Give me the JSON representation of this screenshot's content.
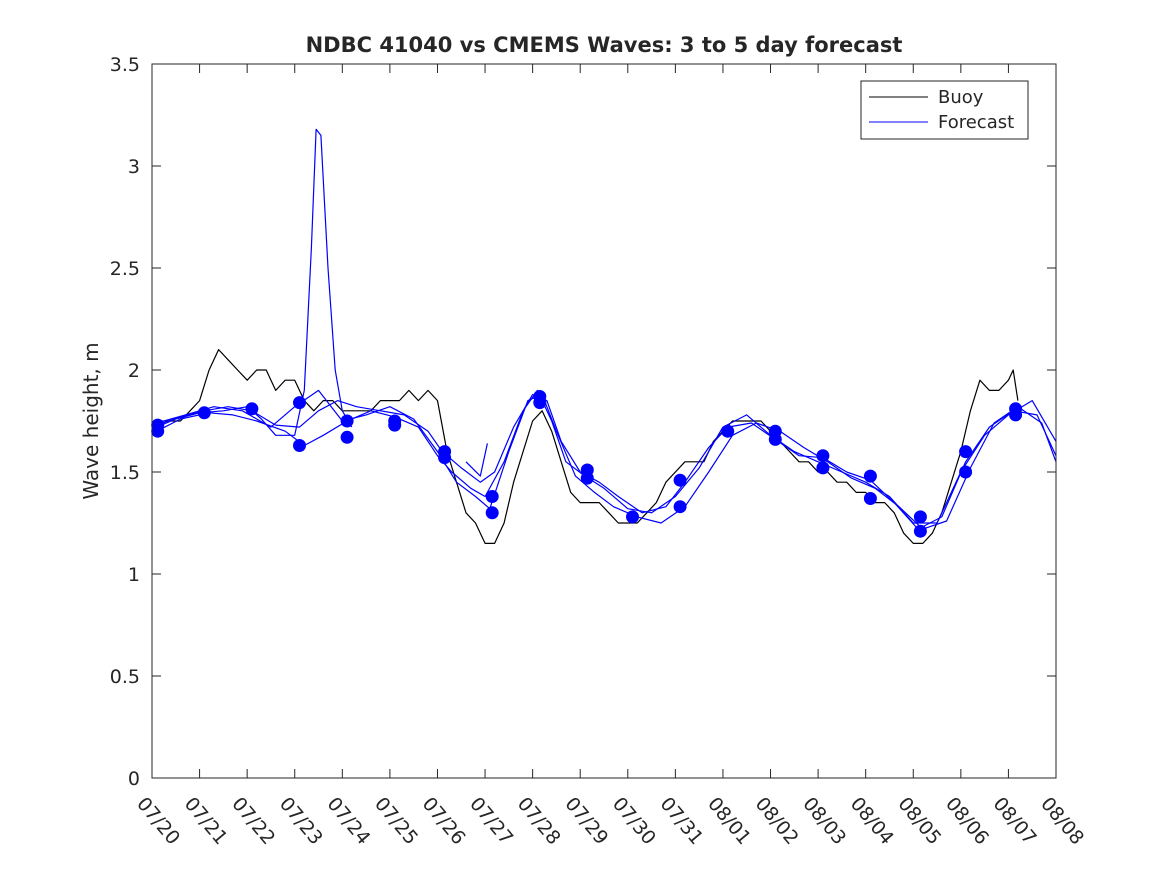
{
  "chart_data": {
    "type": "line",
    "title": "NDBC 41040 vs CMEMS Waves: 3 to 5 day forecast",
    "xlabel": "",
    "ylabel": "Wave height, m",
    "xlim": [
      0,
      19
    ],
    "ylim": [
      0,
      3.5
    ],
    "grid": false,
    "legend_position": "top-right",
    "x_unit": "days after 07/20",
    "x_ticks": [
      {
        "x": 0,
        "label": "07/20"
      },
      {
        "x": 1,
        "label": "07/21"
      },
      {
        "x": 2,
        "label": "07/22"
      },
      {
        "x": 3,
        "label": "07/23"
      },
      {
        "x": 4,
        "label": "07/24"
      },
      {
        "x": 5,
        "label": "07/25"
      },
      {
        "x": 6,
        "label": "07/26"
      },
      {
        "x": 7,
        "label": "07/27"
      },
      {
        "x": 8,
        "label": "07/28"
      },
      {
        "x": 9,
        "label": "07/29"
      },
      {
        "x": 10,
        "label": "07/30"
      },
      {
        "x": 11,
        "label": "07/31"
      },
      {
        "x": 12,
        "label": "08/01"
      },
      {
        "x": 13,
        "label": "08/02"
      },
      {
        "x": 14,
        "label": "08/03"
      },
      {
        "x": 15,
        "label": "08/04"
      },
      {
        "x": 16,
        "label": "08/05"
      },
      {
        "x": 17,
        "label": "08/06"
      },
      {
        "x": 18,
        "label": "08/07"
      },
      {
        "x": 19,
        "label": "08/08"
      }
    ],
    "y_ticks": [
      {
        "y": 0,
        "label": "0"
      },
      {
        "y": 0.5,
        "label": "0.5"
      },
      {
        "y": 1,
        "label": "1"
      },
      {
        "y": 1.5,
        "label": "1.5"
      },
      {
        "y": 2,
        "label": "2"
      },
      {
        "y": 2.5,
        "label": "2.5"
      },
      {
        "y": 3,
        "label": "3"
      },
      {
        "y": 3.5,
        "label": "3.5"
      }
    ],
    "legend": [
      {
        "label": "Buoy",
        "color": "#000000"
      },
      {
        "label": "Forecast",
        "color": "#0000ff"
      }
    ],
    "series": [
      {
        "name": "Buoy",
        "color": "#000000",
        "points": [
          [
            0.0,
            1.7
          ],
          [
            0.2,
            1.75
          ],
          [
            0.4,
            1.75
          ],
          [
            0.6,
            1.75
          ],
          [
            0.8,
            1.8
          ],
          [
            1.0,
            1.85
          ],
          [
            1.2,
            2.0
          ],
          [
            1.4,
            2.1
          ],
          [
            1.6,
            2.05
          ],
          [
            1.8,
            2.0
          ],
          [
            2.0,
            1.95
          ],
          [
            2.2,
            2.0
          ],
          [
            2.4,
            2.0
          ],
          [
            2.6,
            1.9
          ],
          [
            2.8,
            1.95
          ],
          [
            3.0,
            1.95
          ],
          [
            3.2,
            1.85
          ],
          [
            3.4,
            1.8
          ],
          [
            3.6,
            1.85
          ],
          [
            3.8,
            1.85
          ],
          [
            4.0,
            1.8
          ],
          [
            4.2,
            1.8
          ],
          [
            4.4,
            1.8
          ],
          [
            4.6,
            1.8
          ],
          [
            4.8,
            1.85
          ],
          [
            5.0,
            1.85
          ],
          [
            5.2,
            1.85
          ],
          [
            5.4,
            1.9
          ],
          [
            5.6,
            1.85
          ],
          [
            5.8,
            1.9
          ],
          [
            6.0,
            1.85
          ],
          [
            6.2,
            1.6
          ],
          [
            6.4,
            1.45
          ],
          [
            6.6,
            1.3
          ],
          [
            6.8,
            1.25
          ],
          [
            7.0,
            1.15
          ],
          [
            7.2,
            1.15
          ],
          [
            7.4,
            1.25
          ],
          [
            7.6,
            1.45
          ],
          [
            7.8,
            1.6
          ],
          [
            8.0,
            1.75
          ],
          [
            8.2,
            1.8
          ],
          [
            8.4,
            1.7
          ],
          [
            8.6,
            1.55
          ],
          [
            8.8,
            1.4
          ],
          [
            9.0,
            1.35
          ],
          [
            9.2,
            1.35
          ],
          [
            9.4,
            1.35
          ],
          [
            9.6,
            1.3
          ],
          [
            9.8,
            1.25
          ],
          [
            10.0,
            1.25
          ],
          [
            10.2,
            1.25
          ],
          [
            10.4,
            1.3
          ],
          [
            10.6,
            1.35
          ],
          [
            10.8,
            1.45
          ],
          [
            11.0,
            1.5
          ],
          [
            11.2,
            1.55
          ],
          [
            11.4,
            1.55
          ],
          [
            11.6,
            1.55
          ],
          [
            11.8,
            1.65
          ],
          [
            12.0,
            1.7
          ],
          [
            12.2,
            1.75
          ],
          [
            12.4,
            1.75
          ],
          [
            12.6,
            1.75
          ],
          [
            12.8,
            1.75
          ],
          [
            13.0,
            1.7
          ],
          [
            13.2,
            1.65
          ],
          [
            13.4,
            1.6
          ],
          [
            13.6,
            1.55
          ],
          [
            13.8,
            1.55
          ],
          [
            14.0,
            1.5
          ],
          [
            14.2,
            1.5
          ],
          [
            14.4,
            1.45
          ],
          [
            14.6,
            1.45
          ],
          [
            14.8,
            1.4
          ],
          [
            15.0,
            1.4
          ],
          [
            15.2,
            1.35
          ],
          [
            15.4,
            1.35
          ],
          [
            15.6,
            1.3
          ],
          [
            15.8,
            1.2
          ],
          [
            16.0,
            1.15
          ],
          [
            16.2,
            1.15
          ],
          [
            16.4,
            1.2
          ],
          [
            16.6,
            1.3
          ],
          [
            16.8,
            1.45
          ],
          [
            17.0,
            1.6
          ],
          [
            17.2,
            1.8
          ],
          [
            17.4,
            1.95
          ],
          [
            17.6,
            1.9
          ],
          [
            17.8,
            1.9
          ],
          [
            18.0,
            1.95
          ],
          [
            18.1,
            2.0
          ],
          [
            18.2,
            1.85
          ]
        ]
      },
      {
        "name": "",
        "color": "#0000ff",
        "points": [
          [
            0.1,
            1.72
          ],
          [
            0.5,
            1.76
          ],
          [
            1.0,
            1.79
          ],
          [
            1.5,
            1.8
          ],
          [
            2.0,
            1.82
          ],
          [
            2.3,
            1.76
          ],
          [
            2.6,
            1.68
          ],
          [
            3.0,
            1.68
          ],
          [
            3.2,
            1.9
          ],
          [
            3.35,
            2.6
          ],
          [
            3.45,
            3.18
          ],
          [
            3.55,
            3.15
          ],
          [
            3.7,
            2.5
          ],
          [
            3.85,
            2.0
          ],
          [
            4.0,
            1.8
          ],
          [
            4.2,
            1.72
          ]
        ]
      },
      {
        "name": "",
        "color": "#0000ff",
        "points": [
          [
            0.1,
            1.7
          ],
          [
            0.6,
            1.76
          ],
          [
            1.2,
            1.79
          ],
          [
            1.7,
            1.78
          ],
          [
            2.2,
            1.75
          ],
          [
            2.8,
            1.7
          ],
          [
            3.2,
            1.63
          ],
          [
            3.6,
            1.68
          ],
          [
            4.1,
            1.75
          ],
          [
            4.6,
            1.8
          ],
          [
            5.1,
            1.77
          ],
          [
            5.6,
            1.72
          ],
          [
            6.0,
            1.58
          ],
          [
            6.3,
            1.5
          ],
          [
            6.7,
            1.42
          ],
          [
            7.0,
            1.38
          ],
          [
            7.4,
            1.55
          ],
          [
            7.8,
            1.8
          ],
          [
            8.1,
            1.9
          ],
          [
            8.4,
            1.75
          ],
          [
            8.7,
            1.55
          ],
          [
            9.1,
            1.48
          ],
          [
            9.5,
            1.42
          ],
          [
            10.0,
            1.32
          ],
          [
            10.5,
            1.3
          ],
          [
            11.0,
            1.38
          ],
          [
            11.5,
            1.52
          ],
          [
            12.0,
            1.72
          ],
          [
            12.5,
            1.78
          ],
          [
            13.0,
            1.68
          ],
          [
            13.5,
            1.6
          ],
          [
            14.0,
            1.55
          ],
          [
            14.5,
            1.5
          ],
          [
            15.0,
            1.45
          ],
          [
            15.5,
            1.38
          ],
          [
            16.0,
            1.25
          ],
          [
            16.5,
            1.25
          ],
          [
            17.0,
            1.5
          ],
          [
            17.5,
            1.68
          ],
          [
            18.0,
            1.78
          ],
          [
            18.5,
            1.85
          ],
          [
            19.0,
            1.65
          ]
        ]
      },
      {
        "name": "",
        "color": "#0000ff",
        "points": [
          [
            0.1,
            1.73
          ],
          [
            0.6,
            1.77
          ],
          [
            1.1,
            1.8
          ],
          [
            1.6,
            1.82
          ],
          [
            2.1,
            1.8
          ],
          [
            2.6,
            1.73
          ],
          [
            3.1,
            1.72
          ],
          [
            3.5,
            1.8
          ],
          [
            3.9,
            1.85
          ],
          [
            4.3,
            1.82
          ],
          [
            4.8,
            1.8
          ],
          [
            5.3,
            1.78
          ],
          [
            5.8,
            1.7
          ],
          [
            6.1,
            1.6
          ],
          [
            6.5,
            1.52
          ],
          [
            6.9,
            1.45
          ],
          [
            7.2,
            1.5
          ],
          [
            7.6,
            1.72
          ],
          [
            8.0,
            1.88
          ],
          [
            8.3,
            1.85
          ],
          [
            8.6,
            1.65
          ],
          [
            9.0,
            1.5
          ],
          [
            9.4,
            1.45
          ],
          [
            9.8,
            1.38
          ],
          [
            10.3,
            1.3
          ],
          [
            10.8,
            1.33
          ],
          [
            11.2,
            1.45
          ],
          [
            11.7,
            1.62
          ],
          [
            12.1,
            1.72
          ],
          [
            12.6,
            1.74
          ],
          [
            13.1,
            1.66
          ],
          [
            13.6,
            1.58
          ],
          [
            14.1,
            1.57
          ],
          [
            14.6,
            1.5
          ],
          [
            15.1,
            1.46
          ],
          [
            15.6,
            1.35
          ],
          [
            16.1,
            1.22
          ],
          [
            16.6,
            1.28
          ],
          [
            17.1,
            1.55
          ],
          [
            17.6,
            1.72
          ],
          [
            18.1,
            1.8
          ],
          [
            18.6,
            1.78
          ],
          [
            19.0,
            1.58
          ]
        ]
      },
      {
        "name": "",
        "color": "#0000ff",
        "points": [
          [
            0.1,
            1.74
          ],
          [
            0.7,
            1.78
          ],
          [
            1.3,
            1.82
          ],
          [
            1.9,
            1.8
          ],
          [
            2.5,
            1.72
          ],
          [
            3.0,
            1.82
          ],
          [
            3.5,
            1.9
          ],
          [
            4.0,
            1.75
          ],
          [
            4.5,
            1.78
          ],
          [
            5.0,
            1.82
          ],
          [
            5.5,
            1.76
          ],
          [
            6.0,
            1.6
          ],
          [
            6.4,
            1.45
          ],
          [
            6.8,
            1.38
          ],
          [
            7.1,
            1.32
          ],
          [
            7.5,
            1.6
          ],
          [
            7.9,
            1.85
          ],
          [
            8.2,
            1.88
          ],
          [
            8.5,
            1.7
          ],
          [
            8.9,
            1.48
          ],
          [
            9.3,
            1.4
          ],
          [
            9.7,
            1.33
          ],
          [
            10.2,
            1.28
          ],
          [
            10.7,
            1.25
          ],
          [
            11.2,
            1.33
          ],
          [
            11.7,
            1.5
          ],
          [
            12.2,
            1.68
          ],
          [
            12.7,
            1.74
          ],
          [
            13.2,
            1.7
          ],
          [
            13.7,
            1.62
          ],
          [
            14.2,
            1.55
          ],
          [
            14.7,
            1.47
          ],
          [
            15.2,
            1.42
          ],
          [
            15.7,
            1.33
          ],
          [
            16.2,
            1.22
          ],
          [
            16.7,
            1.26
          ],
          [
            17.2,
            1.52
          ],
          [
            17.7,
            1.74
          ],
          [
            18.2,
            1.82
          ],
          [
            18.7,
            1.74
          ],
          [
            19.0,
            1.55
          ]
        ]
      },
      {
        "name": "",
        "color": "#0000ff",
        "points": [
          [
            6.6,
            1.55
          ],
          [
            6.9,
            1.48
          ],
          [
            7.05,
            1.64
          ]
        ]
      }
    ],
    "markers": {
      "color": "#0000ff",
      "points": [
        [
          0.12,
          1.7
        ],
        [
          0.12,
          1.73
        ],
        [
          1.1,
          1.79
        ],
        [
          2.1,
          1.81
        ],
        [
          3.1,
          1.63
        ],
        [
          3.1,
          1.84
        ],
        [
          4.1,
          1.67
        ],
        [
          4.1,
          1.75
        ],
        [
          5.1,
          1.73
        ],
        [
          5.1,
          1.75
        ],
        [
          6.15,
          1.57
        ],
        [
          6.15,
          1.6
        ],
        [
          7.15,
          1.3
        ],
        [
          7.15,
          1.38
        ],
        [
          8.15,
          1.84
        ],
        [
          8.15,
          1.87
        ],
        [
          9.15,
          1.47
        ],
        [
          9.15,
          1.51
        ],
        [
          10.1,
          1.28
        ],
        [
          11.1,
          1.33
        ],
        [
          11.1,
          1.46
        ],
        [
          12.1,
          1.7
        ],
        [
          13.1,
          1.66
        ],
        [
          13.1,
          1.7
        ],
        [
          14.1,
          1.52
        ],
        [
          14.1,
          1.58
        ],
        [
          15.1,
          1.37
        ],
        [
          15.1,
          1.48
        ],
        [
          16.15,
          1.21
        ],
        [
          16.15,
          1.28
        ],
        [
          17.1,
          1.5
        ],
        [
          17.1,
          1.6
        ],
        [
          18.15,
          1.78
        ],
        [
          18.15,
          1.81
        ]
      ]
    }
  }
}
